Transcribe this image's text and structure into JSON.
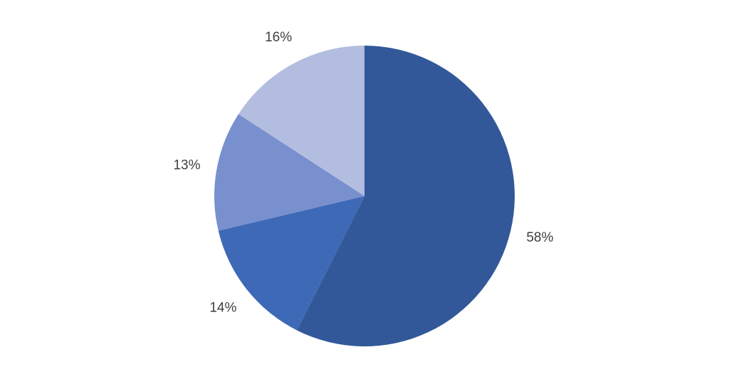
{
  "chart_data": {
    "type": "pie",
    "title": "",
    "start": "top",
    "direction": "clockwise",
    "legend": "none",
    "slices": [
      {
        "value": 58,
        "label": "58%",
        "color": "#325899"
      },
      {
        "value": 14,
        "label": "14%",
        "color": "#3e69b6"
      },
      {
        "value": 13,
        "label": "13%",
        "color": "#7990cf"
      },
      {
        "value": 16,
        "label": "16%",
        "color": "#b3bddf"
      }
    ]
  }
}
